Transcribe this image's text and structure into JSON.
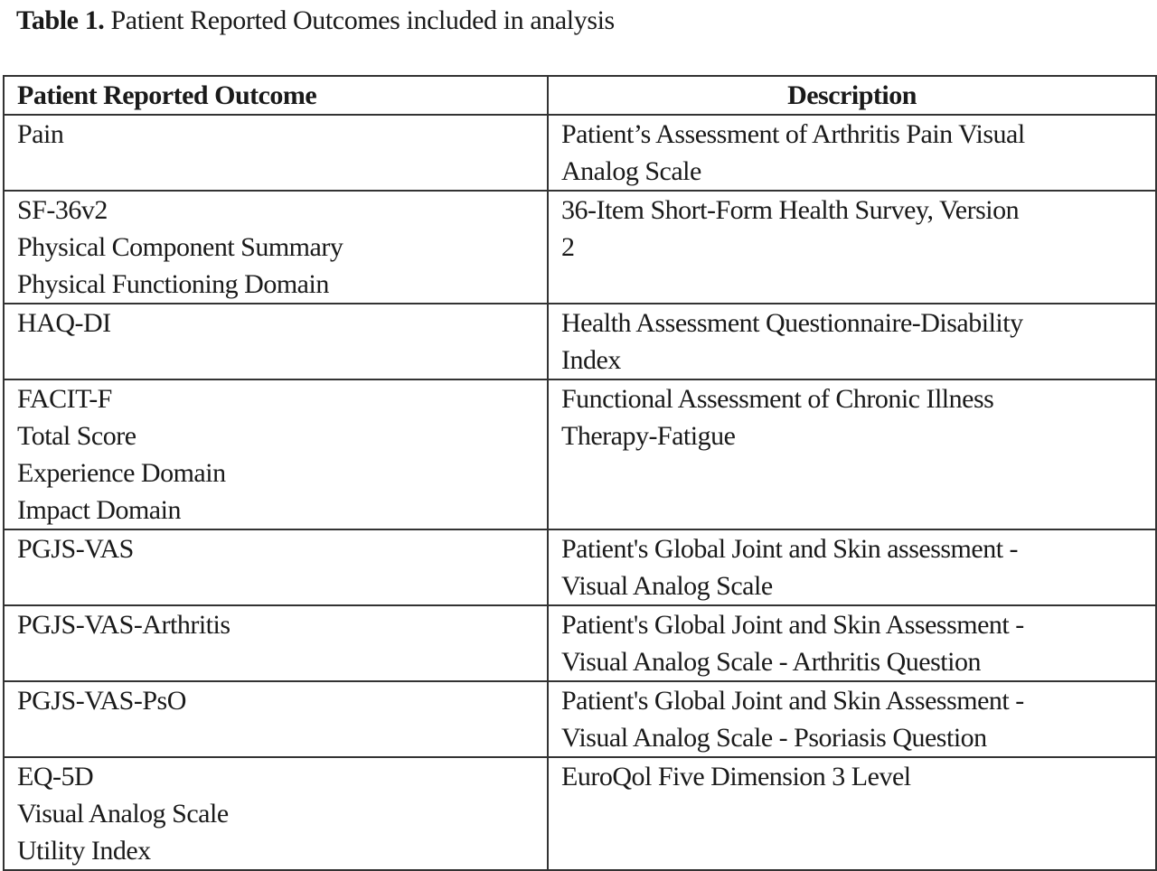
{
  "caption": {
    "label": "Table 1.",
    "text": "Patient Reported Outcomes included in analysis"
  },
  "table": {
    "headers": [
      "Patient Reported Outcome",
      "Description"
    ],
    "rows": [
      {
        "outcome": [
          "Pain"
        ],
        "description": [
          "Patient’s Assessment of Arthritis Pain Visual",
          "Analog Scale"
        ]
      },
      {
        "outcome": [
          "SF-36v2",
          "Physical Component Summary",
          "Physical Functioning Domain"
        ],
        "description": [
          "36-Item Short-Form Health Survey, Version",
          "2"
        ]
      },
      {
        "outcome": [
          "HAQ-DI"
        ],
        "description": [
          "Health Assessment Questionnaire-Disability",
          "Index"
        ]
      },
      {
        "outcome": [
          "FACIT-F",
          "Total Score",
          "Experience Domain",
          "Impact Domain"
        ],
        "description": [
          "Functional Assessment of Chronic Illness",
          "Therapy-Fatigue"
        ]
      },
      {
        "outcome": [
          "PGJS-VAS"
        ],
        "description": [
          "Patient's Global Joint and Skin assessment -",
          "Visual Analog Scale"
        ]
      },
      {
        "outcome": [
          "PGJS-VAS-Arthritis"
        ],
        "description": [
          "Patient's Global Joint and Skin Assessment -",
          "Visual Analog Scale - Arthritis Question"
        ]
      },
      {
        "outcome": [
          "PGJS-VAS-PsO"
        ],
        "description": [
          "Patient's Global Joint and Skin Assessment -",
          "Visual Analog Scale - Psoriasis Question"
        ]
      },
      {
        "outcome": [
          "EQ-5D",
          "Visual Analog Scale",
          "Utility Index"
        ],
        "description": [
          "EuroQol Five Dimension 3 Level"
        ]
      }
    ]
  }
}
